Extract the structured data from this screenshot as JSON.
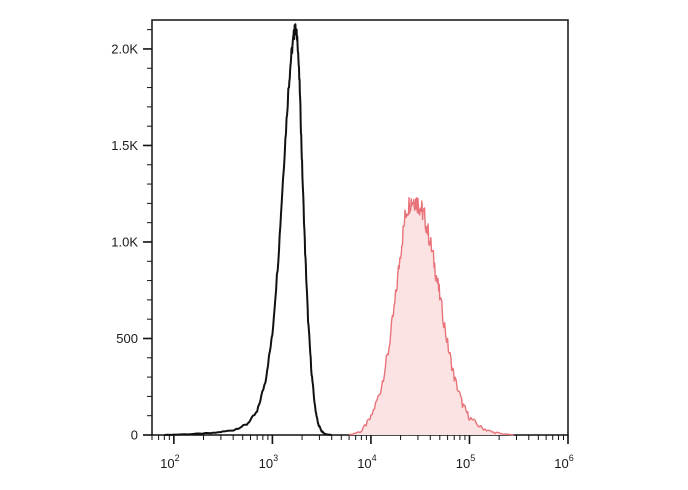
{
  "chart_data": {
    "type": "area",
    "x_scale": "log",
    "xlim": [
      60,
      1000000
    ],
    "ylim": [
      0,
      2150
    ],
    "x_major_ticks": [
      {
        "value": 100,
        "base": "10",
        "exp": "2"
      },
      {
        "value": 1000,
        "base": "10",
        "exp": "3"
      },
      {
        "value": 10000,
        "base": "10",
        "exp": "4"
      },
      {
        "value": 100000,
        "base": "10",
        "exp": "5"
      },
      {
        "value": 1000000,
        "base": "10",
        "exp": "6"
      }
    ],
    "y_major_ticks": [
      {
        "value": 0,
        "label": "0"
      },
      {
        "value": 500,
        "label": "500"
      },
      {
        "value": 1000,
        "label": "1.0K"
      },
      {
        "value": 1500,
        "label": "1.5K"
      },
      {
        "value": 2000,
        "label": "2.0K"
      }
    ],
    "y_minor_step": 100,
    "grid": false,
    "legend": "none",
    "series": [
      {
        "style": "outline",
        "color": "#111111",
        "x": [
          80,
          150,
          250,
          400,
          550,
          700,
          850,
          1000,
          1150,
          1300,
          1450,
          1550,
          1650,
          1700,
          1800,
          1900,
          2000,
          2150,
          2300,
          2500,
          2700,
          2900,
          3150,
          3400,
          3700,
          4000
        ],
        "y": [
          0,
          5,
          10,
          25,
          55,
          120,
          280,
          520,
          920,
          1380,
          1780,
          1960,
          2070,
          2110,
          2050,
          1780,
          1400,
          950,
          600,
          320,
          150,
          60,
          20,
          5,
          2,
          0
        ]
      },
      {
        "style": "filled",
        "color": "#e8737a",
        "fill": "#fce3e3",
        "x": [
          6000,
          8000,
          10000,
          12500,
          15000,
          17500,
          20000,
          22500,
          25000,
          27500,
          30000,
          32500,
          35000,
          40000,
          45000,
          50000,
          60000,
          70000,
          85000,
          100000,
          130000,
          170000,
          220000,
          280000
        ],
        "y": [
          0,
          20,
          90,
          230,
          430,
          680,
          950,
          1150,
          1210,
          1220,
          1200,
          1170,
          1130,
          1000,
          860,
          720,
          470,
          300,
          160,
          90,
          40,
          15,
          5,
          0
        ]
      }
    ]
  }
}
